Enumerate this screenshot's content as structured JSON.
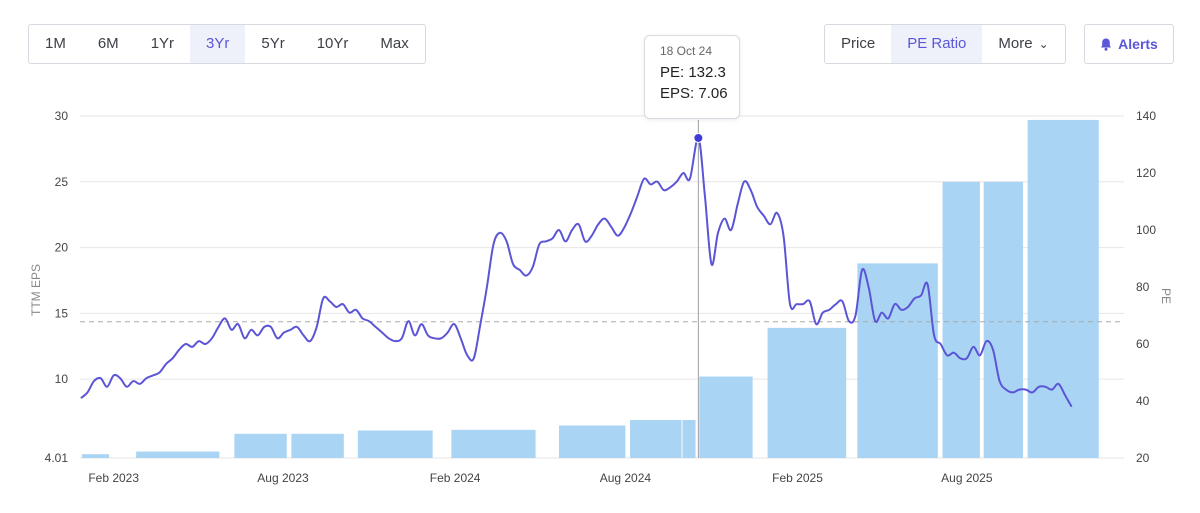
{
  "range_buttons": [
    {
      "label": "1M",
      "active": false
    },
    {
      "label": "6M",
      "active": false
    },
    {
      "label": "1Yr",
      "active": false
    },
    {
      "label": "3Yr",
      "active": true
    },
    {
      "label": "5Yr",
      "active": false
    },
    {
      "label": "10Yr",
      "active": false
    },
    {
      "label": "Max",
      "active": false
    }
  ],
  "metric_buttons": {
    "price": "Price",
    "pe_ratio": "PE Ratio",
    "more": "More",
    "active": "pe_ratio"
  },
  "alerts_label": "Alerts",
  "colors": {
    "accent": "#5a57d8",
    "line": "#5b55d6",
    "bar": "#aad4f3",
    "grid": "#e6e6e6",
    "dashed": "#aaaaaa"
  },
  "tooltip": {
    "date": "18 Oct 24",
    "pe_label": "PE: 132.3",
    "eps_label": "EPS: 7.06"
  },
  "chart_data": {
    "type": "bar+line",
    "x_axis": {
      "start": "2022-12-27",
      "end": "2026-01-16",
      "tick_labels": [
        "Feb 2023",
        "Aug 2023",
        "Feb 2024",
        "Aug 2024",
        "Feb 2025",
        "Aug 2025"
      ],
      "tick_dates": [
        "2023-02-01",
        "2023-08-01",
        "2024-02-01",
        "2024-08-01",
        "2025-02-01",
        "2025-08-01"
      ]
    },
    "left_axis": {
      "label": "TTM EPS",
      "ylim": [
        4.01,
        30
      ],
      "tick_labels": [
        "30",
        "25",
        "20",
        "15",
        "10",
        "4.01"
      ],
      "tick_values": [
        30,
        25,
        20,
        15,
        10,
        4.01
      ]
    },
    "right_axis": {
      "label": "PE",
      "ylim": [
        20,
        140
      ],
      "tick_labels": [
        "140",
        "120",
        "100",
        "80",
        "60",
        "40",
        "20"
      ],
      "tick_values": [
        140,
        120,
        100,
        80,
        60,
        40,
        20
      ]
    },
    "grid": true,
    "reference_line": {
      "axis": "pe",
      "value": 67.8,
      "style": "dashed"
    },
    "eps_bars": [
      {
        "start": "2022-12-29",
        "end": "2023-01-27",
        "value": 4.3
      },
      {
        "start": "2023-02-25",
        "end": "2023-05-25",
        "value": 4.5
      },
      {
        "start": "2023-06-10",
        "end": "2023-08-05",
        "value": 5.85
      },
      {
        "start": "2023-08-10",
        "end": "2023-10-05",
        "value": 5.85
      },
      {
        "start": "2023-10-20",
        "end": "2024-01-08",
        "value": 6.1
      },
      {
        "start": "2024-01-28",
        "end": "2024-04-27",
        "value": 6.15
      },
      {
        "start": "2024-05-22",
        "end": "2024-08-01",
        "value": 6.48
      },
      {
        "start": "2024-08-06",
        "end": "2024-09-30",
        "value": 6.9
      },
      {
        "start": "2024-10-01",
        "end": "2024-10-15",
        "value": 6.9
      },
      {
        "start": "2024-10-19",
        "end": "2024-12-15",
        "value": 10.2
      },
      {
        "start": "2024-12-31",
        "end": "2025-03-25",
        "value": 13.9
      },
      {
        "start": "2025-04-06",
        "end": "2025-07-01",
        "value": 18.8
      },
      {
        "start": "2025-07-06",
        "end": "2025-08-15",
        "value": 25.0
      },
      {
        "start": "2025-08-19",
        "end": "2025-09-30",
        "value": 25.0
      },
      {
        "start": "2025-10-05",
        "end": "2025-12-20",
        "value": 29.7
      }
    ],
    "pe_series": {
      "name": "PE",
      "points": [
        [
          "2022-12-28",
          41
        ],
        [
          "2023-01-04",
          43
        ],
        [
          "2023-01-11",
          47
        ],
        [
          "2023-01-18",
          48
        ],
        [
          "2023-01-25",
          45
        ],
        [
          "2023-02-01",
          49
        ],
        [
          "2023-02-08",
          48
        ],
        [
          "2023-02-15",
          45
        ],
        [
          "2023-02-22",
          47
        ],
        [
          "2023-03-01",
          46
        ],
        [
          "2023-03-08",
          48
        ],
        [
          "2023-03-15",
          49
        ],
        [
          "2023-03-22",
          50
        ],
        [
          "2023-03-29",
          53
        ],
        [
          "2023-04-05",
          55
        ],
        [
          "2023-04-12",
          58
        ],
        [
          "2023-04-19",
          60
        ],
        [
          "2023-04-26",
          59
        ],
        [
          "2023-05-03",
          61
        ],
        [
          "2023-05-10",
          60
        ],
        [
          "2023-05-17",
          62
        ],
        [
          "2023-05-24",
          66
        ],
        [
          "2023-05-31",
          69
        ],
        [
          "2023-06-07",
          65
        ],
        [
          "2023-06-14",
          67
        ],
        [
          "2023-06-21",
          62
        ],
        [
          "2023-06-28",
          65
        ],
        [
          "2023-07-05",
          63
        ],
        [
          "2023-07-12",
          66
        ],
        [
          "2023-07-19",
          66
        ],
        [
          "2023-07-26",
          62
        ],
        [
          "2023-08-02",
          64
        ],
        [
          "2023-08-09",
          65
        ],
        [
          "2023-08-16",
          66
        ],
        [
          "2023-08-23",
          63
        ],
        [
          "2023-08-30",
          61
        ],
        [
          "2023-09-06",
          66
        ],
        [
          "2023-09-13",
          76
        ],
        [
          "2023-09-20",
          75
        ],
        [
          "2023-09-27",
          73
        ],
        [
          "2023-10-04",
          74
        ],
        [
          "2023-10-11",
          71
        ],
        [
          "2023-10-18",
          72
        ],
        [
          "2023-10-25",
          69
        ],
        [
          "2023-11-01",
          68
        ],
        [
          "2023-11-08",
          66
        ],
        [
          "2023-11-15",
          64
        ],
        [
          "2023-11-22",
          62
        ],
        [
          "2023-11-29",
          61
        ],
        [
          "2023-12-06",
          62
        ],
        [
          "2023-12-13",
          68
        ],
        [
          "2023-12-20",
          63
        ],
        [
          "2023-12-27",
          67
        ],
        [
          "2024-01-03",
          63
        ],
        [
          "2024-01-10",
          62
        ],
        [
          "2024-01-17",
          62
        ],
        [
          "2024-01-24",
          64
        ],
        [
          "2024-01-31",
          67
        ],
        [
          "2024-02-07",
          62
        ],
        [
          "2024-02-14",
          56
        ],
        [
          "2024-02-21",
          55
        ],
        [
          "2024-02-28",
          67
        ],
        [
          "2024-03-06",
          80
        ],
        [
          "2024-03-13",
          95
        ],
        [
          "2024-03-20",
          99
        ],
        [
          "2024-03-27",
          96
        ],
        [
          "2024-04-03",
          88
        ],
        [
          "2024-04-10",
          86
        ],
        [
          "2024-04-17",
          84
        ],
        [
          "2024-04-24",
          87
        ],
        [
          "2024-05-01",
          95
        ],
        [
          "2024-05-08",
          96
        ],
        [
          "2024-05-15",
          97
        ],
        [
          "2024-05-22",
          100
        ],
        [
          "2024-05-29",
          96
        ],
        [
          "2024-06-05",
          100
        ],
        [
          "2024-06-12",
          102
        ],
        [
          "2024-06-19",
          96
        ],
        [
          "2024-06-26",
          98
        ],
        [
          "2024-07-03",
          102
        ],
        [
          "2024-07-10",
          104
        ],
        [
          "2024-07-17",
          101
        ],
        [
          "2024-07-24",
          98
        ],
        [
          "2024-07-31",
          101
        ],
        [
          "2024-08-07",
          106
        ],
        [
          "2024-08-14",
          112
        ],
        [
          "2024-08-21",
          118
        ],
        [
          "2024-08-28",
          116
        ],
        [
          "2024-09-04",
          117
        ],
        [
          "2024-09-11",
          114
        ],
        [
          "2024-09-18",
          115
        ],
        [
          "2024-09-25",
          117
        ],
        [
          "2024-10-02",
          120
        ],
        [
          "2024-10-09",
          118
        ],
        [
          "2024-10-18",
          132.3
        ],
        [
          "2024-10-25",
          112
        ],
        [
          "2024-11-01",
          88
        ],
        [
          "2024-11-08",
          99
        ],
        [
          "2024-11-15",
          104
        ],
        [
          "2024-11-22",
          100
        ],
        [
          "2024-11-29",
          109
        ],
        [
          "2024-12-06",
          117
        ],
        [
          "2024-12-13",
          114
        ],
        [
          "2024-12-20",
          108
        ],
        [
          "2024-12-27",
          105
        ],
        [
          "2025-01-03",
          102
        ],
        [
          "2025-01-10",
          106
        ],
        [
          "2025-01-17",
          98
        ],
        [
          "2025-01-24",
          74
        ],
        [
          "2025-01-31",
          74
        ],
        [
          "2025-02-07",
          74
        ],
        [
          "2025-02-14",
          75
        ],
        [
          "2025-02-21",
          67
        ],
        [
          "2025-02-28",
          71
        ],
        [
          "2025-03-07",
          72
        ],
        [
          "2025-03-14",
          74
        ],
        [
          "2025-03-21",
          75
        ],
        [
          "2025-03-28",
          68
        ],
        [
          "2025-04-04",
          70
        ],
        [
          "2025-04-11",
          86
        ],
        [
          "2025-04-18",
          80
        ],
        [
          "2025-04-25",
          68
        ],
        [
          "2025-05-02",
          71
        ],
        [
          "2025-05-09",
          69
        ],
        [
          "2025-05-16",
          74
        ],
        [
          "2025-05-23",
          72
        ],
        [
          "2025-05-30",
          73
        ],
        [
          "2025-06-06",
          76
        ],
        [
          "2025-06-13",
          77
        ],
        [
          "2025-06-20",
          81
        ],
        [
          "2025-06-27",
          63
        ],
        [
          "2025-07-04",
          60
        ],
        [
          "2025-07-11",
          56
        ],
        [
          "2025-07-18",
          57
        ],
        [
          "2025-07-25",
          55
        ],
        [
          "2025-08-01",
          55
        ],
        [
          "2025-08-08",
          59
        ],
        [
          "2025-08-15",
          56
        ],
        [
          "2025-08-22",
          61
        ],
        [
          "2025-08-29",
          58
        ],
        [
          "2025-09-05",
          47
        ],
        [
          "2025-09-12",
          44
        ],
        [
          "2025-09-19",
          43
        ],
        [
          "2025-09-26",
          44
        ],
        [
          "2025-10-03",
          44
        ],
        [
          "2025-10-10",
          43
        ],
        [
          "2025-10-17",
          45
        ],
        [
          "2025-10-24",
          45
        ],
        [
          "2025-10-31",
          44
        ],
        [
          "2025-11-07",
          46
        ],
        [
          "2025-11-14",
          42
        ],
        [
          "2025-11-21",
          38
        ]
      ]
    },
    "highlight": {
      "date": "2024-10-18",
      "pe": 132.3,
      "eps": 7.06
    }
  }
}
